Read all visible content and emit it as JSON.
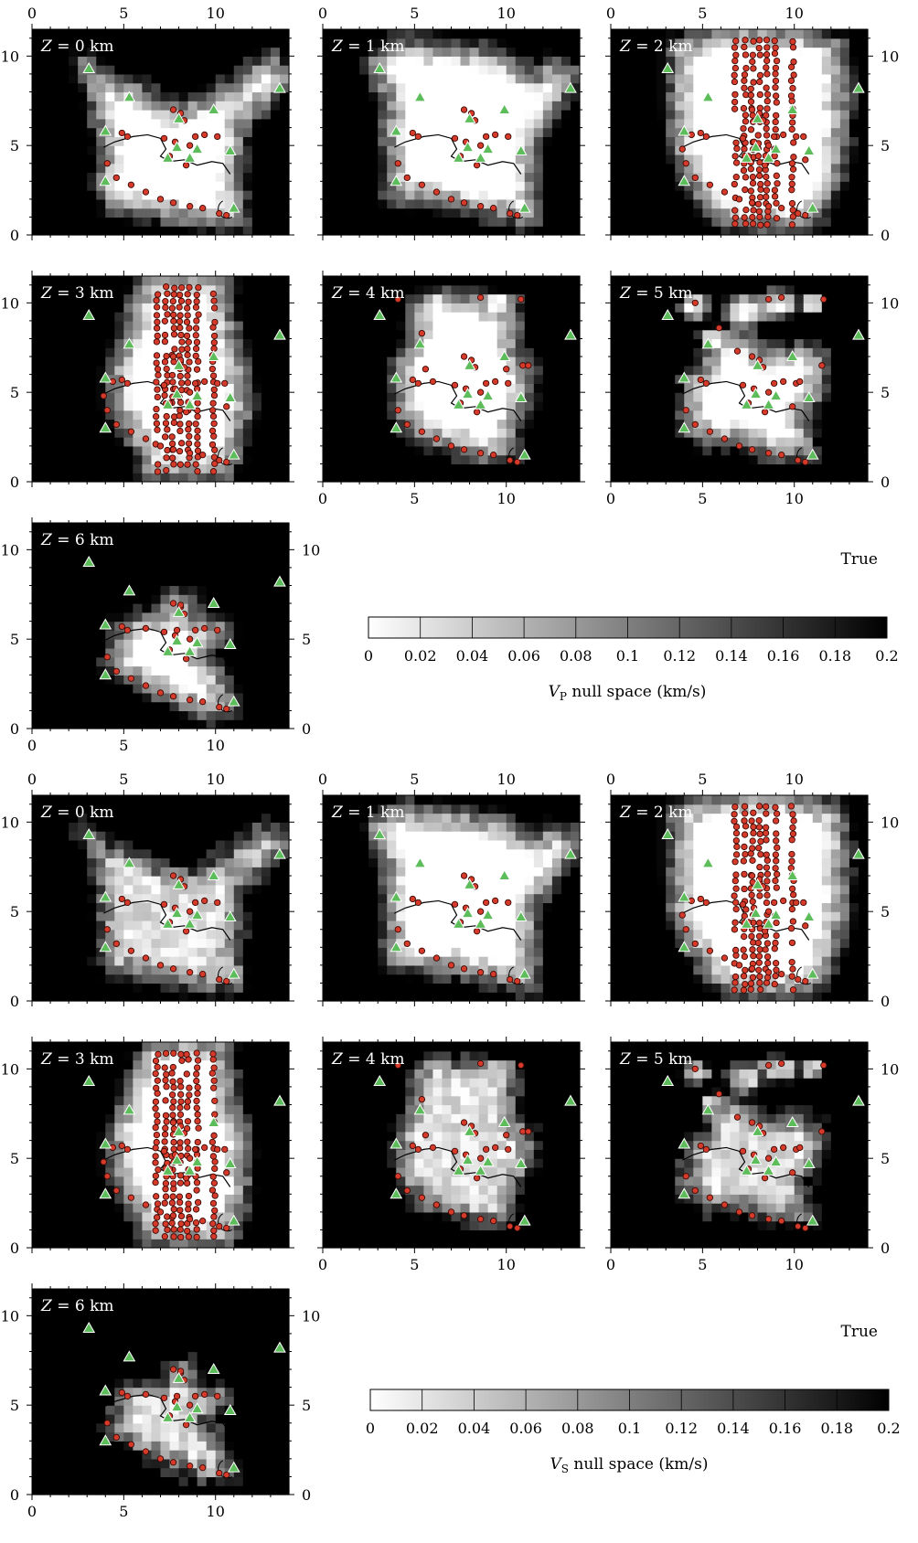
{
  "figure": {
    "label": "True",
    "colorbars": [
      {
        "var": "V",
        "sub": "P",
        "suffix": " null space (km/s)",
        "ticks": [
          "0",
          "0.02",
          "0.04",
          "0.06",
          "0.08",
          "0.1",
          "0.12",
          "0.14",
          "0.16",
          "0.18",
          "0.2"
        ]
      },
      {
        "var": "V",
        "sub": "S",
        "suffix": " null space (km/s)",
        "ticks": [
          "0",
          "0.02",
          "0.04",
          "0.06",
          "0.08",
          "0.1",
          "0.12",
          "0.14",
          "0.16",
          "0.18",
          "0.2"
        ]
      }
    ]
  },
  "chart_data": {
    "type": "heatmap",
    "description_keys": "two groups of 7 depth slices (Vp, Vs)",
    "xlim": [
      0,
      14
    ],
    "ylim": [
      0,
      11.5
    ],
    "x_ticks": [
      0,
      5,
      10
    ],
    "y_ticks": [
      0,
      5,
      10
    ],
    "value_range": [
      0,
      0.2
    ],
    "depth_labels": [
      "Z = 0 km",
      "Z = 1 km",
      "Z = 2 km",
      "Z = 3 km",
      "Z = 4 km",
      "Z = 5 km",
      "Z = 6 km"
    ],
    "stations": [
      [
        3.1,
        9.3
      ],
      [
        5.3,
        7.7
      ],
      [
        9.9,
        7.0
      ],
      [
        13.5,
        8.2
      ],
      [
        8.0,
        6.5
      ],
      [
        4.0,
        5.8
      ],
      [
        7.9,
        4.9
      ],
      [
        9.0,
        4.8
      ],
      [
        10.8,
        4.7
      ],
      [
        7.4,
        4.3
      ],
      [
        8.6,
        4.3
      ],
      [
        4.0,
        3.0
      ],
      [
        11.0,
        1.5
      ]
    ],
    "coastline": [
      [
        3.9,
        4.9
      ],
      [
        4.5,
        5.2
      ],
      [
        5.5,
        5.5
      ],
      [
        6.3,
        5.6
      ],
      [
        7.0,
        5.4
      ],
      [
        7.3,
        4.8
      ],
      [
        7.0,
        4.4
      ],
      [
        7.5,
        4.1
      ],
      [
        8.3,
        4.2
      ],
      [
        9.0,
        3.9
      ],
      [
        9.8,
        4.1
      ],
      [
        10.4,
        4.0
      ],
      [
        10.8,
        3.4
      ]
    ],
    "slices": [
      {
        "depth_km": 0,
        "events": "sparse"
      },
      {
        "depth_km": 1,
        "events": "sparse"
      },
      {
        "depth_km": 2,
        "events": "dense"
      },
      {
        "depth_km": 3,
        "events": "dense"
      },
      {
        "depth_km": 4,
        "events": "sparse"
      },
      {
        "depth_km": 5,
        "events": "sparse"
      },
      {
        "depth_km": 6,
        "events": "sparse"
      }
    ]
  }
}
